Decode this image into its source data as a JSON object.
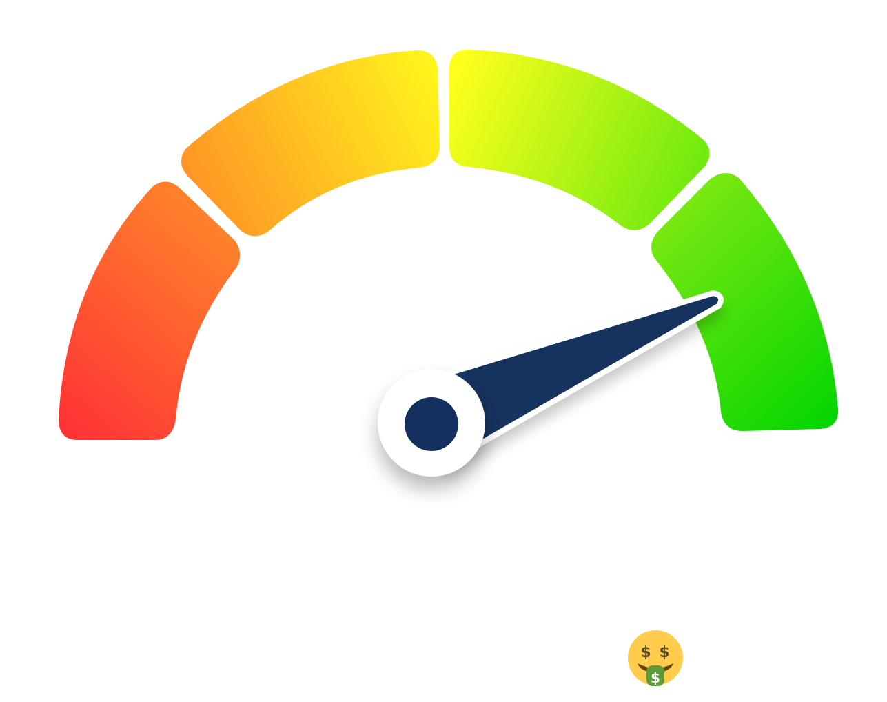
{
  "gauge": {
    "segments": [
      {
        "name": "segment-1",
        "from": "#ff3535",
        "to": "#ff8a2a"
      },
      {
        "name": "segment-2",
        "from": "#ff8f26",
        "to": "#fff51c"
      },
      {
        "name": "segment-3",
        "from": "#ffff1c",
        "to": "#63e80e"
      },
      {
        "name": "segment-4",
        "from": "#7ae812",
        "to": "#04d600"
      }
    ],
    "needle_level": 0.87,
    "colors": {
      "needle": "#14305f",
      "hub_ring": "#ffffff",
      "hub_center": "#14305f"
    }
  },
  "emoji": {
    "icon": "money-mouth-face-icon",
    "face_color": "#ffcc4d",
    "tongue_color": "#5d9b3a",
    "symbol_color": "#5d4b19"
  }
}
